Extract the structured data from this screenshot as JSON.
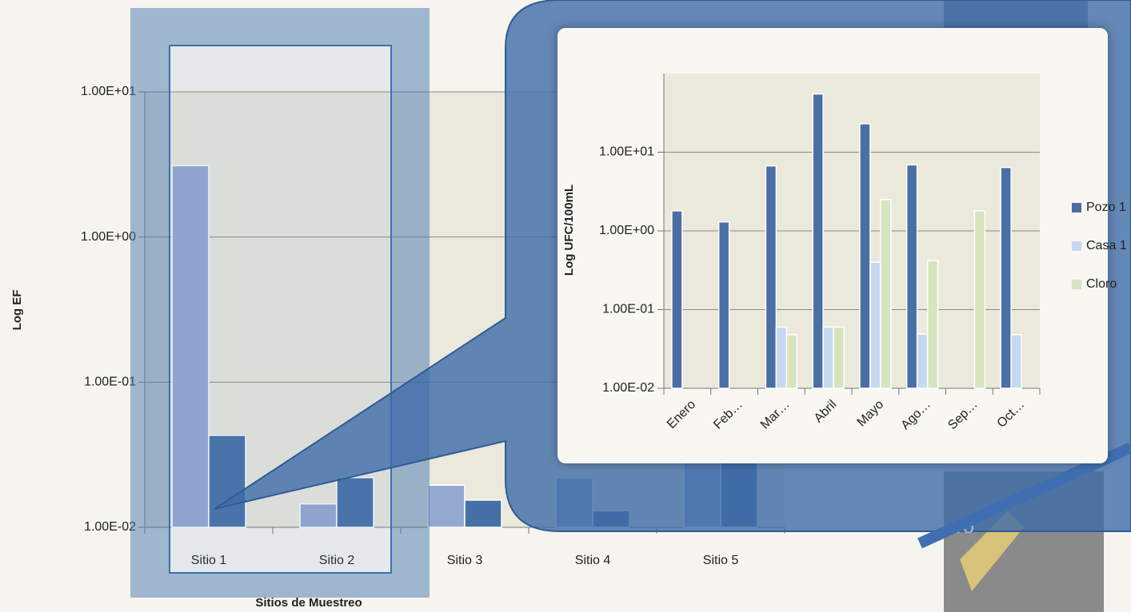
{
  "chart_data": [
    {
      "type": "bar",
      "xlabel": "Sitios de Muestreo",
      "ylabel": "Log  EF",
      "categories": [
        "Sitio 1",
        "Sitio 2",
        "Sitio 3",
        "Sitio 4",
        "Sitio 5"
      ],
      "series": [
        {
          "color": "#95a8d2",
          "values": [
            3.1,
            0.0145,
            0.0195,
            0.022,
            0.5
          ]
        },
        {
          "color": "#4470a6",
          "values": [
            0.043,
            0.022,
            0.0154,
            0.013,
            0.3
          ]
        }
      ],
      "log_y": true,
      "ylim": [
        0.01,
        10
      ],
      "yticks": [
        {
          "value": 0.01,
          "label": "1.00E-02"
        },
        {
          "value": 0.1,
          "label": "1.00E-01"
        },
        {
          "value": 1,
          "label": "1.00E+00"
        },
        {
          "value": 10,
          "label": "1.00E+01"
        }
      ],
      "grid": true
    },
    {
      "type": "bar",
      "ylabel": "Log UFC/100mL",
      "categories": [
        "Enero",
        "Feb…",
        "Mar…",
        "Abril",
        "Mayo",
        "Ago…",
        "Sep…",
        "Oct…"
      ],
      "series": [
        {
          "name": "Pozo 1",
          "color": "#4a6fa5",
          "values": [
            1.8,
            1.3,
            6.7,
            55,
            23,
            6.9,
            null,
            6.4
          ]
        },
        {
          "name": "Casa 1",
          "color": "#c6d9f1",
          "values": [
            null,
            null,
            0.06,
            0.06,
            0.4,
            0.049,
            null,
            0.048
          ]
        },
        {
          "name": "Cloro",
          "color": "#d7e4bd",
          "values": [
            null,
            null,
            0.048,
            0.06,
            2.5,
            0.42,
            1.8,
            null
          ]
        }
      ],
      "log_y": true,
      "ylim": [
        0.01,
        100
      ],
      "yticks": [
        {
          "value": 0.01,
          "label": "1.00E-02"
        },
        {
          "value": 0.1,
          "label": "1.00E-01"
        },
        {
          "value": 1,
          "label": "1.00E+00"
        },
        {
          "value": 10,
          "label": "1.00E+01"
        }
      ],
      "grid": true,
      "legend": "right"
    }
  ],
  "map_label": "ro"
}
